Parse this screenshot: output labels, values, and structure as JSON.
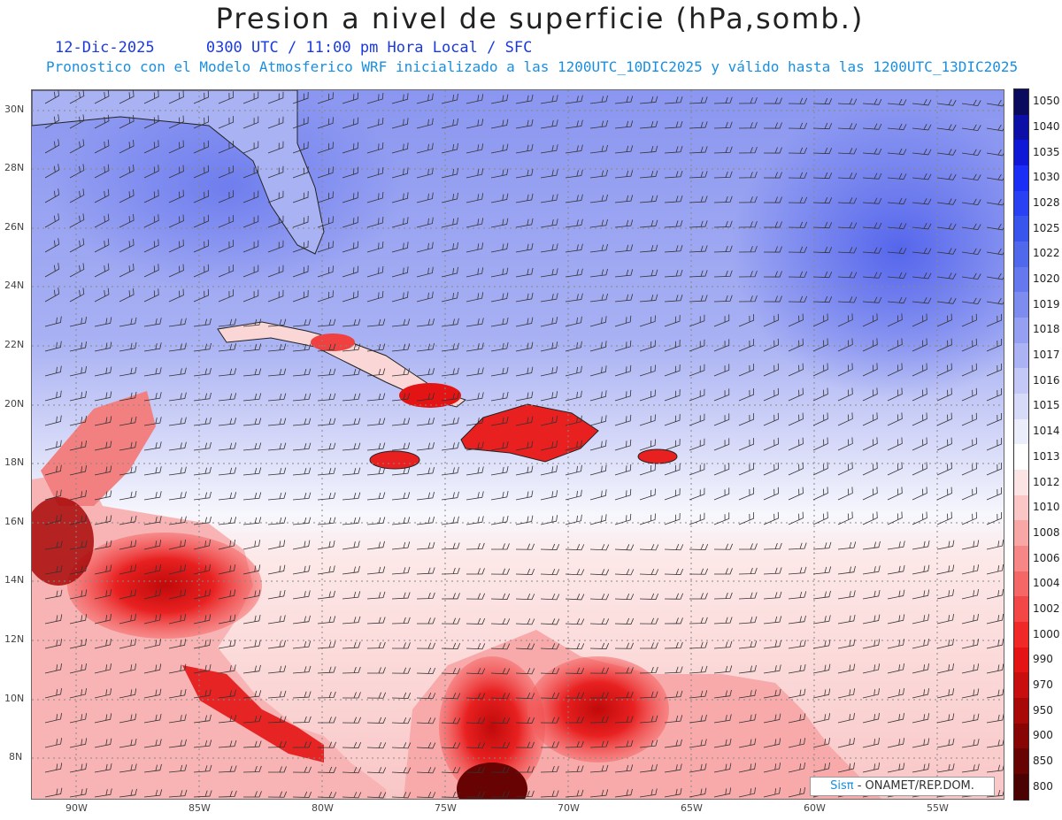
{
  "title": "Presion a nivel de superficie (hPa,somb.)",
  "date_label": "12-Dic-2025",
  "time_label": "0300 UTC / 11:00 pm Hora Local / SFC",
  "subtitle": "Pronostico con el Modelo Atmosferico WRF inicializado a las 1200UTC_10DIC2025 y válido hasta las  1200UTC_13DIC2025",
  "credit": {
    "logo": "Sisπ",
    "text": " - ONAMET/REP.DOM."
  },
  "axes": {
    "lat_labels": [
      "30N",
      "28N",
      "26N",
      "24N",
      "22N",
      "20N",
      "18N",
      "16N",
      "14N",
      "12N",
      "10N",
      "8N"
    ],
    "lon_labels": [
      "90W",
      "85W",
      "80W",
      "75W",
      "70W",
      "65W",
      "60W",
      "55W"
    ]
  },
  "colorbar": {
    "labels": [
      "1050",
      "1040",
      "1035",
      "1030",
      "1028",
      "1025",
      "1022",
      "1020",
      "1019",
      "1018",
      "1017",
      "1016",
      "1015",
      "1014",
      "1013",
      "1012",
      "1010",
      "1008",
      "1006",
      "1004",
      "1002",
      "1000",
      "990",
      "970",
      "950",
      "900",
      "850",
      "800"
    ],
    "colors": [
      "#0a0a5e",
      "#0d10a6",
      "#1018d8",
      "#1a2ef5",
      "#2a40f3",
      "#3a55ee",
      "#4f68ec",
      "#6678ee",
      "#7e8cf0",
      "#95a0f2",
      "#abb3f4",
      "#c3c8f6",
      "#d8dbf8",
      "#ebedfb",
      "#ffffff",
      "#fde4e4",
      "#fbc6c6",
      "#f9a6a6",
      "#f78686",
      "#f56666",
      "#f34646",
      "#f02828",
      "#e41414",
      "#c80e0e",
      "#a80808",
      "#880505",
      "#680303",
      "#4a0202"
    ]
  }
}
